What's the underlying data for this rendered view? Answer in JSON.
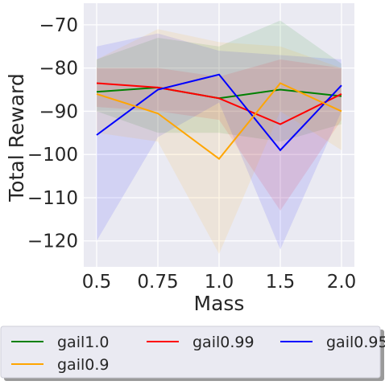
{
  "chart_data": {
    "type": "line",
    "xlabel": "Mass",
    "ylabel": "Total Reward",
    "x_categories": [
      "0.5",
      "0.75",
      "1.0",
      "1.5",
      "2.0"
    ],
    "yticks": [
      -70,
      -80,
      -90,
      -100,
      -110,
      -120
    ],
    "ylim": [
      -126,
      -65
    ],
    "grid": true,
    "legend_position": "bottom",
    "series": [
      {
        "name": "gail1.0",
        "color": "#008000",
        "values": [
          -85.5,
          -84.5,
          -87.0,
          -85.0,
          -86.5
        ],
        "upper": [
          -78.0,
          -73.0,
          -75.0,
          -69.0,
          -79.0
        ],
        "lower": [
          -90.0,
          -95.0,
          -95.0,
          -97.0,
          -93.0
        ]
      },
      {
        "name": "gail0.99",
        "color": "#ff0000",
        "values": [
          -83.5,
          -84.5,
          -87.0,
          -93.0,
          -86.0
        ],
        "upper": [
          -80.0,
          -80.0,
          -82.0,
          -78.0,
          -80.0
        ],
        "lower": [
          -89.0,
          -90.0,
          -92.0,
          -113.0,
          -92.0
        ]
      },
      {
        "name": "gail0.95",
        "color": "#0000ff",
        "values": [
          -95.5,
          -85.0,
          -81.5,
          -99.0,
          -84.0
        ],
        "upper": [
          -75.0,
          -72.0,
          -76.0,
          -77.0,
          -78.0
        ],
        "lower": [
          -120.0,
          -96.0,
          -88.0,
          -122.0,
          -90.0
        ]
      },
      {
        "name": "gail0.9",
        "color": "#ffa500",
        "values": [
          -86.0,
          -90.5,
          -101.0,
          -83.5,
          -90.0
        ],
        "upper": [
          -78.0,
          -71.0,
          -74.0,
          -75.0,
          -80.0
        ],
        "lower": [
          -95.0,
          -97.0,
          -123.0,
          -90.0,
          -99.0
        ]
      }
    ]
  }
}
